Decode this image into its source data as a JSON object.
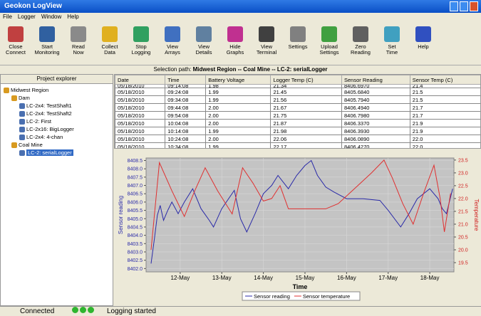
{
  "window": {
    "title": "Geokon LogView"
  },
  "menu": [
    "File",
    "Logger",
    "Window",
    "Help"
  ],
  "toolbar": [
    [
      "Close",
      "Connect"
    ],
    [
      "Start",
      "Monitoring"
    ],
    [
      "Read",
      "Now"
    ],
    [
      "Collect",
      "Data"
    ],
    [
      "Stop",
      "Logging"
    ],
    [
      "View",
      "Arrays"
    ],
    [
      "View",
      "Details"
    ],
    [
      "Hide",
      "Graphs"
    ],
    [
      "View",
      "Terminal"
    ],
    [
      "Settings"
    ],
    [
      "Upload",
      "Settings"
    ],
    [
      "Zero",
      "Reading"
    ],
    [
      "Set",
      "Time"
    ],
    [
      "Help"
    ]
  ],
  "selection_path": {
    "label": "Selection path:",
    "value": "Midwest Region -- Coal Mine -- LC-2: serialLogger"
  },
  "explorer": {
    "title": "Project explorer",
    "tree": [
      {
        "label": "Midwest Region",
        "children": [
          {
            "label": "Dam",
            "children": [
              {
                "label": "LC-2x4: TestShaft1"
              },
              {
                "label": "LC-2x4: TestShaft2"
              },
              {
                "label": "LC-2: First"
              },
              {
                "label": "LC-2x16: BigLogger"
              },
              {
                "label": "LC-2x4: 4-chan"
              }
            ]
          },
          {
            "label": "Coal Mine",
            "children": [
              {
                "label": "LC-2: serialLogger",
                "selected": true
              }
            ]
          }
        ]
      }
    ]
  },
  "table": {
    "columns": [
      "Date",
      "Time",
      "Battery Voltage",
      "Logger Temp (C)",
      "Sensor Reading",
      "Sensor Temp (C)"
    ],
    "rows": [
      [
        "05/18/2010",
        "09:14:08",
        "1.98",
        "21.34",
        "8406.6970",
        "21.4"
      ],
      [
        "05/18/2010",
        "09:24:08",
        "1.99",
        "21.45",
        "8405.6840",
        "21.5"
      ],
      [
        "05/18/2010",
        "09:34:08",
        "1.99",
        "21.56",
        "8405.7940",
        "21.5"
      ],
      [
        "05/18/2010",
        "09:44:08",
        "2.00",
        "21.67",
        "8406.4940",
        "21.7"
      ],
      [
        "05/18/2010",
        "09:54:08",
        "2.00",
        "21.75",
        "8406.7980",
        "21.7"
      ],
      [
        "05/18/2010",
        "10:04:08",
        "2.00",
        "21.87",
        "8406.3370",
        "21.9"
      ],
      [
        "05/18/2010",
        "10:14:08",
        "1.99",
        "21.98",
        "8406.3930",
        "21.9"
      ],
      [
        "05/18/2010",
        "10:24:08",
        "2.00",
        "22.06",
        "8406.0890",
        "22.0"
      ],
      [
        "05/18/2010",
        "10:34:08",
        "1.99",
        "22.17",
        "8406.4270",
        "22.0"
      ]
    ]
  },
  "chart_data": {
    "type": "line",
    "x_label": "Time",
    "y_label": "Sensor reading",
    "y2_label": "Temperature",
    "grid": true,
    "legend": "bottom",
    "xlim": [
      11.18,
      18.58
    ],
    "xticks": [
      {
        "value": 12,
        "label": "12-May"
      },
      {
        "value": 13,
        "label": "13-May"
      },
      {
        "value": 14,
        "label": "14-May"
      },
      {
        "value": 15,
        "label": "15-May"
      },
      {
        "value": 16,
        "label": "16-May"
      },
      {
        "value": 17,
        "label": "17-May"
      },
      {
        "value": 18,
        "label": "18-May"
      }
    ],
    "ylim": [
      8401.8,
      8408.65
    ],
    "yticks": [
      {
        "value": 8402,
        "label": "8402.0"
      },
      8402.5,
      {
        "value": 8403,
        "label": "8403.0"
      },
      8403.5,
      {
        "value": 8404,
        "label": "8404.0"
      },
      8404.5,
      {
        "value": 8405,
        "label": "8405.0"
      },
      8405.5,
      {
        "value": 8406,
        "label": "8406.0"
      },
      8406.5,
      {
        "value": 8407,
        "label": "8407.0"
      },
      8407.5,
      {
        "value": 8408,
        "label": "8408.0"
      },
      8408.5
    ],
    "y2lim": [
      19.14,
      23.58
    ],
    "y2ticks": [
      19.5,
      {
        "value": 20,
        "label": "20.0"
      },
      20.5,
      {
        "value": 21,
        "label": "21.0"
      },
      21.5,
      {
        "value": 22,
        "label": "22.0"
      },
      22.5,
      {
        "value": 23,
        "label": "23.0"
      },
      23.5
    ],
    "series": [
      {
        "name": "Sensor reading",
        "color": "#2a2aa8",
        "x": [
          11.3,
          11.38,
          11.45,
          11.52,
          11.6,
          11.7,
          11.8,
          11.95,
          12.1,
          12.3,
          12.5,
          12.7,
          12.8,
          13.0,
          13.3,
          13.45,
          13.6,
          13.8,
          14.0,
          14.2,
          14.35,
          14.6,
          14.8,
          15.0,
          15.15,
          15.3,
          15.5,
          15.7,
          16.0,
          16.4,
          16.8,
          17.0,
          17.3,
          17.5,
          17.7,
          18.0,
          18.2,
          18.3,
          18.4,
          18.55
        ],
        "values": [
          8402.3,
          8403.8,
          8405.2,
          8405.8,
          8404.9,
          8405.5,
          8406.0,
          8405.3,
          8406.0,
          8406.8,
          8405.6,
          8404.9,
          8404.5,
          8405.6,
          8406.7,
          8405.0,
          8404.2,
          8405.3,
          8406.5,
          8407.0,
          8407.6,
          8406.8,
          8407.6,
          8408.2,
          8408.5,
          8407.6,
          8406.9,
          8406.6,
          8406.2,
          8406.2,
          8406.1,
          8405.5,
          8404.5,
          8405.3,
          8406.2,
          8406.8,
          8406.2,
          8405.6,
          8405.3,
          8406.8
        ]
      },
      {
        "name": "Sensor temperature",
        "color": "#e03030",
        "axis": "y2",
        "x": [
          11.3,
          11.5,
          11.8,
          12.1,
          12.35,
          12.6,
          12.9,
          13.25,
          13.5,
          13.75,
          14.0,
          14.2,
          14.4,
          14.6,
          15.0,
          15.5,
          15.8,
          16.2,
          16.6,
          16.9,
          17.1,
          17.35,
          17.6,
          17.85,
          18.1,
          18.25,
          18.35,
          18.5
        ],
        "values": [
          20.0,
          23.4,
          22.3,
          21.3,
          22.3,
          23.2,
          22.3,
          21.4,
          23.2,
          22.6,
          21.9,
          22.0,
          22.5,
          21.6,
          21.6,
          21.6,
          21.8,
          22.4,
          23.0,
          23.5,
          22.8,
          21.8,
          21.0,
          22.2,
          23.3,
          22.0,
          20.7,
          22.2
        ]
      }
    ]
  },
  "status": {
    "connection": "Connected",
    "message": "Logging started"
  }
}
